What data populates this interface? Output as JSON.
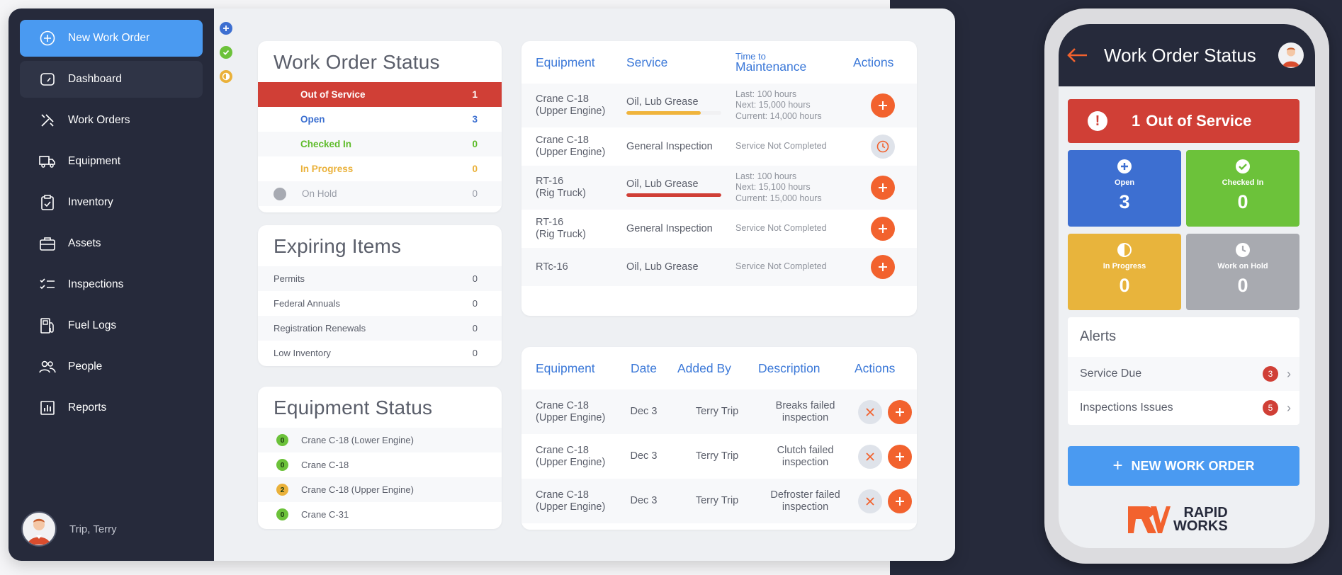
{
  "sidebar": {
    "new_work_order": "New Work Order",
    "items": [
      {
        "label": "Dashboard",
        "icon": "speedometer-icon"
      },
      {
        "label": "Work Orders",
        "icon": "tools-icon"
      },
      {
        "label": "Equipment",
        "icon": "truck-icon"
      },
      {
        "label": "Inventory",
        "icon": "clipboard-icon"
      },
      {
        "label": "Assets",
        "icon": "briefcase-icon"
      },
      {
        "label": "Inspections",
        "icon": "checklist-icon"
      },
      {
        "label": "Fuel Logs",
        "icon": "fuel-pump-icon"
      },
      {
        "label": "People",
        "icon": "people-icon"
      },
      {
        "label": "Reports",
        "icon": "bar-chart-icon"
      }
    ],
    "user_name": "Trip, Terry"
  },
  "work_order_status": {
    "title": "Work Order Status",
    "rows": [
      {
        "label": "Out of Service",
        "value": "1",
        "color": "#d03f36"
      },
      {
        "label": "Open",
        "value": "3",
        "color": "#3b6fd0"
      },
      {
        "label": "Checked In",
        "value": "0",
        "color": "#5fbc2b"
      },
      {
        "label": "In Progress",
        "value": "0",
        "color": "#eab13a"
      },
      {
        "label": "On Hold",
        "value": "0",
        "color": "#9a9ea8"
      }
    ]
  },
  "expiring_items": {
    "title": "Expiring Items",
    "rows": [
      {
        "label": "Permits",
        "value": "0"
      },
      {
        "label": "Federal Annuals",
        "value": "0"
      },
      {
        "label": "Registration Renewals",
        "value": "0"
      },
      {
        "label": "Low Inventory",
        "value": "0"
      }
    ]
  },
  "equipment_status": {
    "title": "Equipment Status",
    "rows": [
      {
        "badge": "0",
        "label": "Crane C-18 (Lower Engine)",
        "color": "#6cc23a"
      },
      {
        "badge": "0",
        "label": "Crane C-18",
        "color": "#6cc23a"
      },
      {
        "badge": "2",
        "label": "Crane C-18 (Upper Engine)",
        "color": "#eab13a"
      },
      {
        "badge": "0",
        "label": "Crane C-31",
        "color": "#6cc23a"
      }
    ]
  },
  "maintenance_table": {
    "headers": {
      "equipment": "Equipment",
      "service": "Service",
      "time_small": "Time to",
      "time_big": "Maintenance",
      "actions": "Actions"
    },
    "rows": [
      {
        "equip1": "Crane C-18",
        "equip2": "(Upper Engine)",
        "service": "Oil, Lub Grease",
        "bar": 0.78,
        "bar_color": "#f0b43c",
        "t1": "Last: 100 hours",
        "t2": "Next: 15,000 hours",
        "t3": "Current: 14,000 hours",
        "action": "add"
      },
      {
        "equip1": "Crane C-18",
        "equip2": "(Upper Engine)",
        "service": "General Inspection",
        "bar": null,
        "t1": "Service Not Completed",
        "action": "clock"
      },
      {
        "equip1": "RT-16",
        "equip2": "(Rig Truck)",
        "service": "Oil, Lub Grease",
        "bar": 1,
        "bar_color": "#d03f36",
        "t1": "Last: 100 hours",
        "t2": "Next: 15,100 hours",
        "t3": "Current: 15,000 hours",
        "action": "add"
      },
      {
        "equip1": "RT-16",
        "equip2": "(Rig Truck)",
        "service": "General Inspection",
        "bar": null,
        "t1": "Service Not Completed",
        "action": "add"
      },
      {
        "equip1": "RTc-16",
        "equip2": "",
        "service": "Oil, Lub Grease",
        "bar": null,
        "t1": "Service Not Completed",
        "action": "add"
      }
    ]
  },
  "issues_table": {
    "headers": {
      "equipment": "Equipment",
      "date": "Date",
      "added_by": "Added By",
      "description": "Description",
      "actions": "Actions"
    },
    "rows": [
      {
        "equip1": "Crane C-18",
        "equip2": "(Upper Engine)",
        "date": "Dec 3",
        "added_by": "Terry Trip",
        "desc1": "Breaks failed",
        "desc2": "inspection"
      },
      {
        "equip1": "Crane C-18",
        "equip2": "(Upper Engine)",
        "date": "Dec 3",
        "added_by": "Terry Trip",
        "desc1": "Clutch failed",
        "desc2": "inspection"
      },
      {
        "equip1": "Crane C-18",
        "equip2": "(Upper Engine)",
        "date": "Dec 3",
        "added_by": "Terry Trip",
        "desc1": "Defroster failed",
        "desc2": "inspection"
      }
    ]
  },
  "phone": {
    "title": "Work Order Status",
    "banner_count": "1",
    "banner_label": "Out of Service",
    "tiles": [
      {
        "label": "Open",
        "value": "3",
        "color": "#3d6fd1",
        "icon": "plus-circle-icon"
      },
      {
        "label": "Checked In",
        "value": "0",
        "color": "#6cc23a",
        "icon": "check-circle-icon"
      },
      {
        "label": "In Progress",
        "value": "0",
        "color": "#e8b43c",
        "icon": "half-circle-icon"
      },
      {
        "label": "Work on Hold",
        "value": "0",
        "color": "#a8aab0",
        "icon": "clock-icon"
      }
    ],
    "alerts_title": "Alerts",
    "alerts": [
      {
        "label": "Service Due",
        "count": "3"
      },
      {
        "label": "Inspections Issues",
        "count": "5"
      }
    ],
    "new_button": "NEW WORK ORDER",
    "logo_line1": "RAPID",
    "logo_line2": "WORKS"
  }
}
